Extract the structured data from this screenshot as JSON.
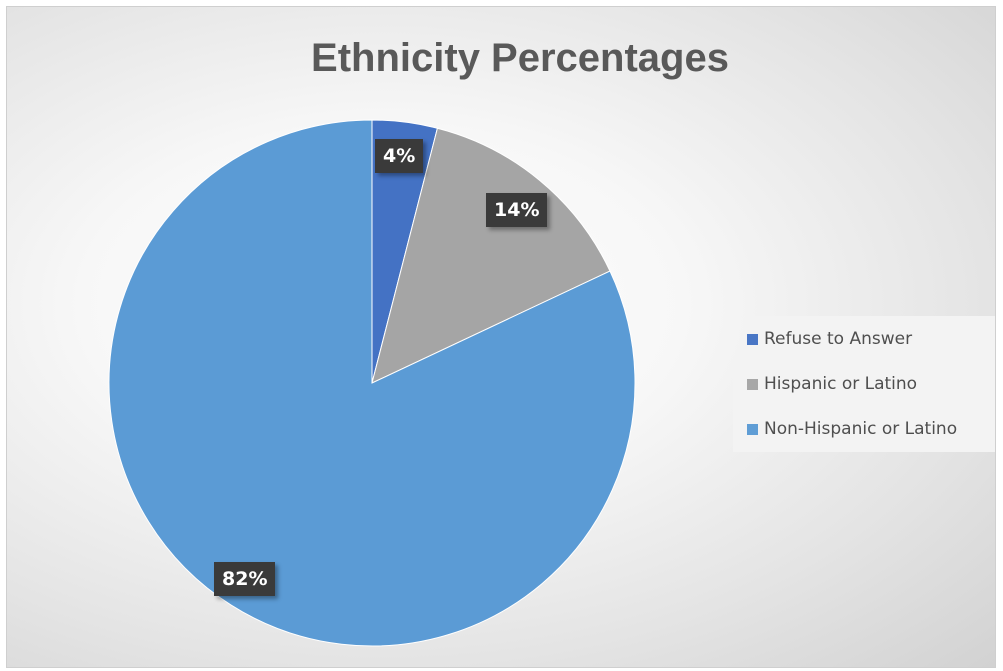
{
  "chart_data": {
    "type": "pie",
    "title": "Ethnicity Percentages",
    "legend_position": "right",
    "categories": [
      "Refuse to Answer",
      "Hispanic or Latino",
      "Non-Hispanic or Latino"
    ],
    "values": [
      4,
      14,
      82
    ],
    "data_labels": [
      "4%",
      "14%",
      "82%"
    ],
    "colors": [
      "#4472C4",
      "#A5A5A5",
      "#5B9BD5"
    ]
  }
}
